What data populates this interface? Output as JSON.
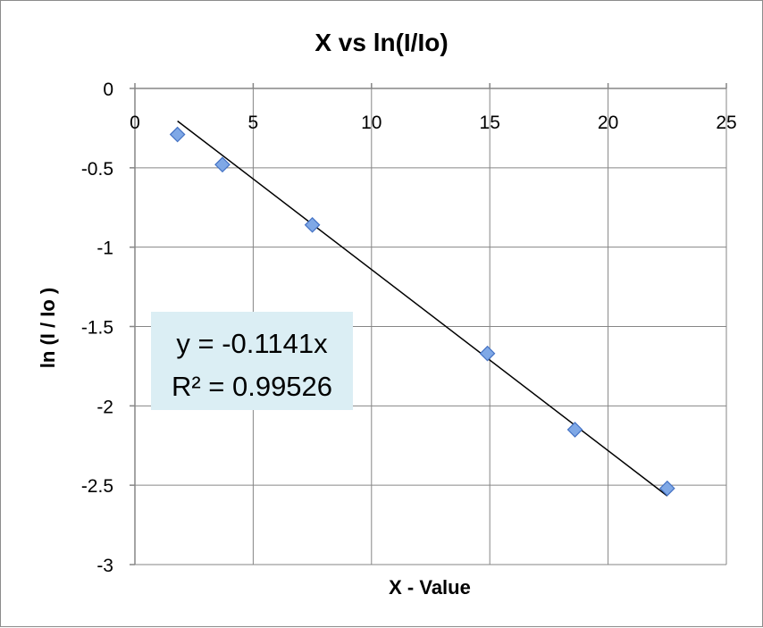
{
  "chart_data": {
    "type": "scatter",
    "title": "X vs ln(I/Io)",
    "xlabel": "X - Value",
    "ylabel": "ln (I / Io )",
    "xlim": [
      0,
      25
    ],
    "ylim": [
      -3,
      0
    ],
    "x_ticks": [
      "0",
      "5",
      "10",
      "15",
      "20",
      "25"
    ],
    "y_ticks": [
      "0",
      "-0.5",
      "-1",
      "-1.5",
      "-2",
      "-2.5",
      "-3"
    ],
    "x_tick_values": [
      0,
      5,
      10,
      15,
      20,
      25
    ],
    "y_tick_values": [
      0,
      -0.5,
      -1,
      -1.5,
      -2,
      -2.5,
      -3
    ],
    "grid": true,
    "x_axis_position": "top",
    "series": [
      {
        "x": [
          1.8,
          3.7,
          7.5,
          14.9,
          18.6,
          22.5
        ],
        "y": [
          -0.29,
          -0.48,
          -0.86,
          -1.67,
          -2.15,
          -2.52
        ]
      }
    ],
    "trendline": {
      "slope": -0.1141,
      "x_range": [
        1.8,
        22.5
      ]
    },
    "annotation": {
      "equation": "y = -0.1141x",
      "r_squared": "R² = 0.99526"
    },
    "colors": {
      "marker_fill": "#7fa8e6",
      "marker_stroke": "#4472c4",
      "annotation_bg": "#dbeef4",
      "gridline": "#868686"
    }
  }
}
